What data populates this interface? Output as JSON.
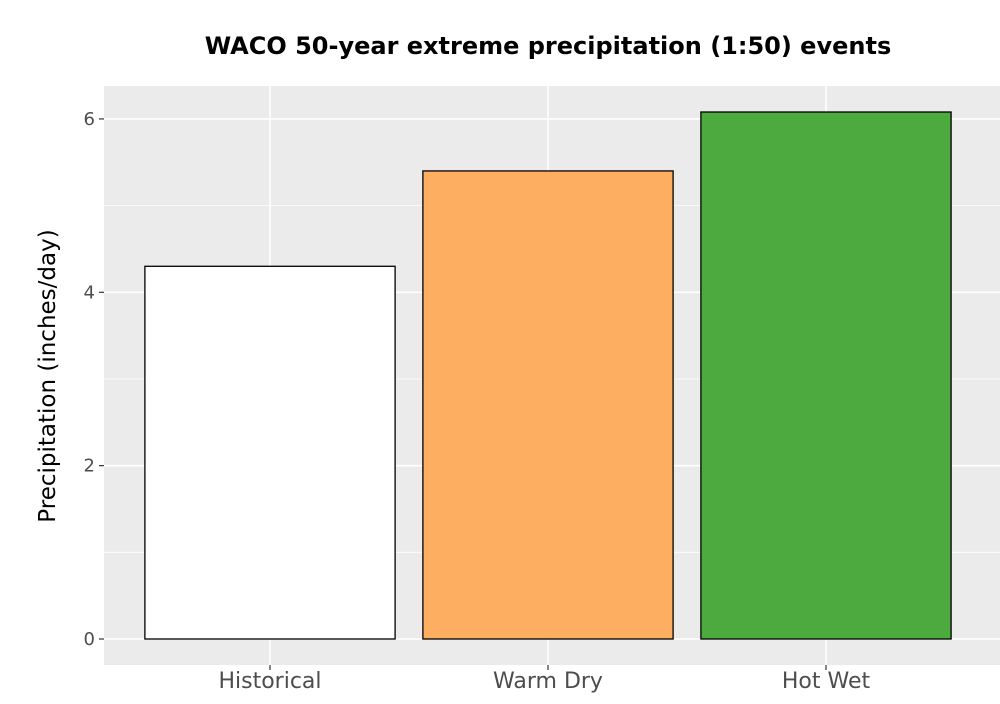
{
  "chart_data": {
    "type": "bar",
    "title": "WACO 50-year extreme precipitation (1:50) events",
    "xlabel": "",
    "ylabel": "Precipitation (inches/day)",
    "categories": [
      "Historical",
      "Warm Dry",
      "Hot Wet"
    ],
    "values": [
      4.3,
      5.4,
      6.08
    ],
    "ylim": [
      -0.3,
      6.38
    ],
    "yticks": [
      0,
      2,
      4,
      6
    ],
    "yticks_labels": [
      "0",
      "2",
      "4",
      "6"
    ],
    "bar_colors": [
      "#ffffff",
      "#fdae61",
      "#4daa3f"
    ],
    "bar_edge_color": "#000000",
    "panel_background": "#ebebeb",
    "grid": true,
    "grid_color": "#ffffff",
    "legend": "none"
  }
}
